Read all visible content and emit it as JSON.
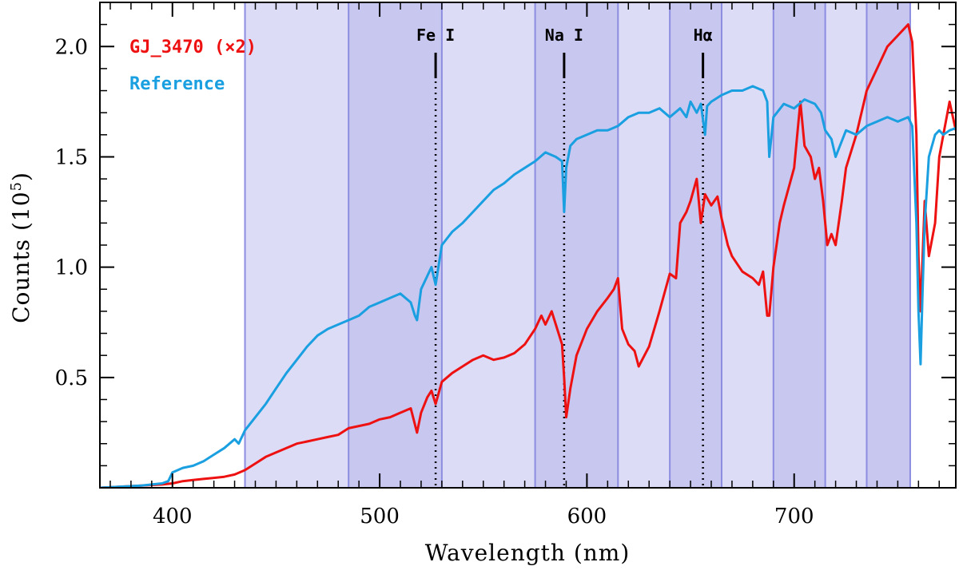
{
  "chart_data": {
    "type": "line",
    "xlabel": "Wavelength (nm)",
    "ylabel": "Counts (10",
    "ylabel_sup": "5",
    "ylabel_close": ")",
    "xlim": [
      365,
      778
    ],
    "ylim": [
      0,
      2.2
    ],
    "xticks": [
      400,
      500,
      600,
      700
    ],
    "xtick_labels": [
      "400",
      "500",
      "600",
      "700"
    ],
    "yticks": [
      0.5,
      1.0,
      1.5,
      2.0
    ],
    "ytick_labels": [
      "0.5",
      "1.0",
      "1.5",
      "2.0"
    ],
    "bands": [
      {
        "x0": 435,
        "x1": 485,
        "shade": "light"
      },
      {
        "x0": 485,
        "x1": 530,
        "shade": "dark"
      },
      {
        "x0": 530,
        "x1": 575,
        "shade": "light"
      },
      {
        "x0": 575,
        "x1": 615,
        "shade": "dark"
      },
      {
        "x0": 615,
        "x1": 640,
        "shade": "light"
      },
      {
        "x0": 640,
        "x1": 665,
        "shade": "dark"
      },
      {
        "x0": 665,
        "x1": 690,
        "shade": "light"
      },
      {
        "x0": 690,
        "x1": 715,
        "shade": "dark"
      },
      {
        "x0": 715,
        "x1": 735,
        "shade": "light"
      },
      {
        "x0": 735,
        "x1": 756,
        "shade": "dark"
      }
    ],
    "band_colors": {
      "light": "#dcdcf7",
      "dark": "#c7c7f0",
      "edge": "#8c8ce0"
    },
    "spectral_lines": [
      {
        "label": "Fe I",
        "x": 527,
        "label_x": 527
      },
      {
        "label": "Na I",
        "x": 589,
        "label_x": 589
      },
      {
        "label": "Hα",
        "x": 656,
        "label_x": 656
      }
    ],
    "series": [
      {
        "name": "GJ_3470 (×2)",
        "color": "#ee1111",
        "x": [
          365,
          375,
          385,
          395,
          400,
          405,
          410,
          415,
          420,
          425,
          430,
          435,
          440,
          445,
          450,
          455,
          460,
          465,
          470,
          475,
          480,
          485,
          490,
          495,
          500,
          505,
          510,
          515,
          518,
          520,
          523,
          525,
          527,
          530,
          535,
          540,
          545,
          550,
          555,
          560,
          565,
          570,
          575,
          578,
          580,
          583,
          585,
          588,
          589,
          590,
          592,
          595,
          600,
          605,
          610,
          613,
          615,
          617,
          620,
          623,
          625,
          630,
          635,
          640,
          643,
          645,
          648,
          650,
          653,
          655,
          657,
          660,
          663,
          665,
          668,
          670,
          675,
          680,
          683,
          685,
          687,
          688,
          690,
          693,
          695,
          700,
          703,
          705,
          708,
          710,
          712,
          714,
          716,
          718,
          720,
          723,
          725,
          730,
          735,
          740,
          745,
          750,
          753,
          755,
          757,
          759,
          760,
          761,
          763,
          765,
          768,
          770,
          772,
          775,
          778
        ],
        "values": [
          0.0,
          0.005,
          0.01,
          0.015,
          0.02,
          0.03,
          0.035,
          0.04,
          0.045,
          0.05,
          0.06,
          0.08,
          0.11,
          0.14,
          0.16,
          0.18,
          0.2,
          0.21,
          0.22,
          0.23,
          0.24,
          0.27,
          0.28,
          0.29,
          0.31,
          0.32,
          0.34,
          0.36,
          0.25,
          0.34,
          0.41,
          0.44,
          0.38,
          0.48,
          0.52,
          0.55,
          0.58,
          0.6,
          0.58,
          0.59,
          0.61,
          0.65,
          0.72,
          0.78,
          0.74,
          0.8,
          0.74,
          0.65,
          0.5,
          0.32,
          0.45,
          0.6,
          0.72,
          0.8,
          0.86,
          0.9,
          0.95,
          0.72,
          0.65,
          0.62,
          0.55,
          0.64,
          0.8,
          0.97,
          0.95,
          1.2,
          1.25,
          1.3,
          1.4,
          1.2,
          1.33,
          1.28,
          1.32,
          1.22,
          1.1,
          1.05,
          0.98,
          0.95,
          0.92,
          0.98,
          0.78,
          0.78,
          1.0,
          1.2,
          1.28,
          1.45,
          1.75,
          1.55,
          1.5,
          1.4,
          1.45,
          1.3,
          1.1,
          1.15,
          1.1,
          1.3,
          1.45,
          1.6,
          1.8,
          1.9,
          2.0,
          2.05,
          2.08,
          2.1,
          2.02,
          1.6,
          1.05,
          0.8,
          1.3,
          1.05,
          1.2,
          1.5,
          1.6,
          1.75,
          1.62
        ]
      },
      {
        "name": "Reference",
        "color": "#1a9fe0",
        "x": [
          365,
          375,
          385,
          395,
          398,
          400,
          405,
          410,
          415,
          420,
          425,
          430,
          432,
          435,
          440,
          445,
          450,
          455,
          460,
          465,
          470,
          475,
          480,
          485,
          490,
          495,
          500,
          505,
          510,
          515,
          517,
          518,
          520,
          525,
          527,
          530,
          535,
          540,
          545,
          550,
          555,
          560,
          565,
          570,
          575,
          580,
          585,
          588,
          589,
          590,
          592,
          595,
          600,
          605,
          610,
          615,
          620,
          625,
          630,
          635,
          640,
          645,
          648,
          650,
          653,
          655,
          657,
          658,
          660,
          665,
          670,
          675,
          680,
          685,
          687,
          688,
          690,
          695,
          700,
          705,
          710,
          713,
          715,
          718,
          720,
          725,
          730,
          735,
          740,
          745,
          750,
          755,
          757,
          759,
          760,
          761,
          762,
          763,
          765,
          768,
          770,
          772,
          775,
          778
        ],
        "values": [
          0.0,
          0.005,
          0.01,
          0.02,
          0.03,
          0.07,
          0.09,
          0.1,
          0.12,
          0.15,
          0.18,
          0.22,
          0.2,
          0.26,
          0.32,
          0.38,
          0.45,
          0.52,
          0.58,
          0.64,
          0.69,
          0.72,
          0.74,
          0.76,
          0.78,
          0.82,
          0.84,
          0.86,
          0.88,
          0.84,
          0.78,
          0.76,
          0.9,
          1.0,
          0.92,
          1.1,
          1.16,
          1.2,
          1.25,
          1.3,
          1.35,
          1.38,
          1.42,
          1.45,
          1.48,
          1.52,
          1.5,
          1.48,
          1.25,
          1.45,
          1.55,
          1.58,
          1.6,
          1.62,
          1.62,
          1.64,
          1.68,
          1.7,
          1.7,
          1.72,
          1.68,
          1.72,
          1.68,
          1.75,
          1.7,
          1.74,
          1.6,
          1.73,
          1.75,
          1.78,
          1.8,
          1.8,
          1.82,
          1.8,
          1.75,
          1.5,
          1.68,
          1.74,
          1.72,
          1.76,
          1.74,
          1.7,
          1.62,
          1.58,
          1.5,
          1.62,
          1.6,
          1.64,
          1.66,
          1.68,
          1.66,
          1.68,
          1.64,
          1.2,
          0.8,
          0.56,
          0.9,
          1.2,
          1.5,
          1.6,
          1.62,
          1.6,
          1.62,
          1.63
        ]
      }
    ]
  }
}
